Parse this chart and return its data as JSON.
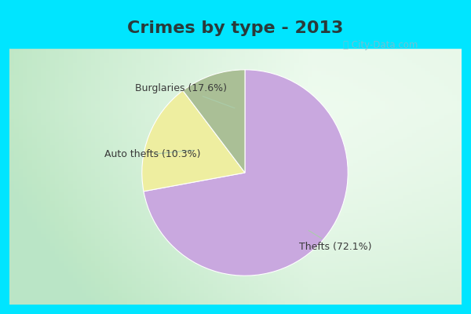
{
  "title": "Crimes by type - 2013",
  "slices": [
    {
      "label": "Thefts",
      "pct": 72.1,
      "color": "#C9A8DF"
    },
    {
      "label": "Burglaries",
      "pct": 17.6,
      "color": "#EEEEA0"
    },
    {
      "label": "Auto thefts",
      "pct": 10.3,
      "color": "#AABF96"
    }
  ],
  "bg_color_border": "#00E5FF",
  "bg_color_main_left": "#B8D8C8",
  "bg_color_main_right": "#E8F5EE",
  "title_fontsize": 16,
  "title_color": "#2A3A3A",
  "label_fontsize": 9,
  "startangle": 90,
  "arrow_color": "#AACCAA",
  "watermark_color": "#90B8C8",
  "border_thickness": 12
}
